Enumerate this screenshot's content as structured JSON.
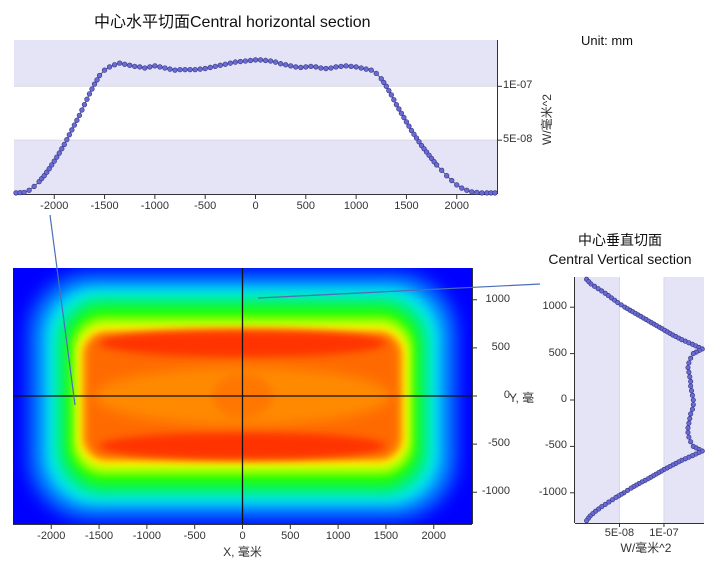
{
  "titles": {
    "horizontal_section": "中心水平切面Central horizontal section",
    "vertical_section_cn": "中心垂直切面",
    "vertical_section_en": "Central Vertical section",
    "unit": "Unit: mm"
  },
  "colors": {
    "band": "#e4e4f6",
    "marker_fill": "#6b6bd6",
    "marker_stroke": "#3a3a8a",
    "line": "#555555",
    "leader_line": "#4a6fb8",
    "axis": "#333333"
  },
  "chart_data": [
    {
      "id": "horizontal_profile",
      "type": "line",
      "title": "中心水平切面Central horizontal section",
      "xlabel": "",
      "ylabel": "W/毫米^2",
      "xlim": [
        -2400,
        2400
      ],
      "ylim": [
        0,
        1.43e-07
      ],
      "x_ticks": [
        -2000,
        -1500,
        -1000,
        -500,
        0,
        500,
        1000,
        1500,
        2000
      ],
      "x_tick_labels": [
        "-2000",
        "-1500",
        "-1000",
        "-500",
        "0",
        "500",
        "1000",
        "1500",
        "2000"
      ],
      "y_ticks": [
        5e-08,
        1e-07
      ],
      "y_tick_labels": [
        "5E-08",
        "1E-07"
      ],
      "y_axis_position": "right",
      "bands": [
        [
          0,
          5e-08
        ],
        [
          1e-07,
          1.43e-07
        ]
      ],
      "x": [
        -2380,
        -2300,
        -2250,
        -2200,
        -2150,
        -2100,
        -2050,
        -2000,
        -1950,
        -1900,
        -1850,
        -1800,
        -1750,
        -1700,
        -1650,
        -1600,
        -1550,
        -1500,
        -1450,
        -1400,
        -1350,
        -1300,
        -1250,
        -1200,
        -1150,
        -1100,
        -1050,
        -1000,
        -950,
        -900,
        -850,
        -800,
        -750,
        -700,
        -650,
        -600,
        -550,
        -500,
        -450,
        -400,
        -350,
        -300,
        -250,
        -200,
        -150,
        -100,
        -50,
        0,
        50,
        100,
        150,
        200,
        250,
        300,
        350,
        400,
        450,
        500,
        550,
        600,
        650,
        700,
        750,
        800,
        850,
        900,
        950,
        1000,
        1050,
        1100,
        1150,
        1200,
        1250,
        1300,
        1350,
        1400,
        1450,
        1500,
        1550,
        1600,
        1650,
        1700,
        1750,
        1800,
        1850,
        1900,
        1950,
        2000,
        2050,
        2100,
        2150,
        2200,
        2250,
        2300,
        2380
      ],
      "values": [
        1e-09,
        1.5e-09,
        3.5e-09,
        7e-09,
        1.15e-08,
        1.7e-08,
        2.35e-08,
        3.05e-08,
        3.8e-08,
        4.6e-08,
        5.5e-08,
        6.4e-08,
        7.3e-08,
        8.3e-08,
        9.3e-08,
        1.02e-07,
        1.1e-07,
        1.15e-07,
        1.18e-07,
        1.2e-07,
        1.215e-07,
        1.205e-07,
        1.195e-07,
        1.185e-07,
        1.18e-07,
        1.17e-07,
        1.18e-07,
        1.19e-07,
        1.18e-07,
        1.17e-07,
        1.16e-07,
        1.15e-07,
        1.155e-07,
        1.155e-07,
        1.155e-07,
        1.155e-07,
        1.16e-07,
        1.165e-07,
        1.175e-07,
        1.185e-07,
        1.195e-07,
        1.205e-07,
        1.215e-07,
        1.225e-07,
        1.23e-07,
        1.235e-07,
        1.24e-07,
        1.245e-07,
        1.245e-07,
        1.24e-07,
        1.235e-07,
        1.225e-07,
        1.21e-07,
        1.2e-07,
        1.19e-07,
        1.18e-07,
        1.175e-07,
        1.18e-07,
        1.185e-07,
        1.18e-07,
        1.17e-07,
        1.165e-07,
        1.17e-07,
        1.18e-07,
        1.185e-07,
        1.19e-07,
        1.185e-07,
        1.18e-07,
        1.17e-07,
        1.16e-07,
        1.15e-07,
        1.12e-07,
        1.07e-07,
        1e-07,
        9.2e-08,
        8.3e-08,
        7.5e-08,
        6.7e-08,
        5.9e-08,
        5.2e-08,
        4.5e-08,
        3.9e-08,
        3.3e-08,
        2.7e-08,
        2.2e-08,
        1.7e-08,
        1.25e-08,
        8.5e-09,
        5.5e-09,
        3.5e-09,
        2e-09,
        1.5e-09,
        1e-09,
        1e-09,
        1e-09
      ]
    },
    {
      "id": "irradiance_map",
      "type": "heatmap",
      "xlabel": "X, 毫米",
      "ylabel": "Y, 毫",
      "xlim": [
        -2400,
        2400
      ],
      "ylim": [
        -1330,
        1330
      ],
      "x_ticks": [
        -2000,
        -1500,
        -1000,
        -500,
        0,
        500,
        1000,
        1500,
        2000
      ],
      "x_tick_labels": [
        "-2000",
        "-1500",
        "-1000",
        "-500",
        "0",
        "500",
        "1000",
        "1500",
        "2000"
      ],
      "y_ticks": [
        -1000,
        -500,
        0,
        500,
        1000
      ],
      "y_tick_labels": [
        "-1000",
        "-500",
        "0",
        "500",
        "1000"
      ],
      "colormap": [
        "#0000ff",
        "#00c8ff",
        "#00ff80",
        "#00ff00",
        "#ffff00",
        "#ff8c00",
        "#ff2000"
      ],
      "crosshair": {
        "x": 0,
        "y": 0
      },
      "description": "Rounded-rectangle irradiance distribution; plateau ~|x|<1700, |y|<650; red ridges near y=±550"
    },
    {
      "id": "vertical_profile",
      "type": "line",
      "title": "中心垂直切面 Central Vertical section",
      "xlabel": "W/毫米^2",
      "ylabel": "",
      "xlim": [
        0,
        1.45e-07
      ],
      "ylim": [
        -1330,
        1330
      ],
      "x_ticks": [
        5e-08,
        1e-07
      ],
      "x_tick_labels": [
        "5E-08",
        "1E-07"
      ],
      "y_ticks": [
        -1000,
        -500,
        0,
        500,
        1000
      ],
      "y_tick_labels": [
        "-1000",
        "-500",
        "0",
        "500",
        "1000"
      ],
      "bands": [
        [
          0,
          5e-08
        ],
        [
          1e-07,
          1.45e-07
        ]
      ],
      "y": [
        1300,
        1250,
        1200,
        1150,
        1100,
        1050,
        1000,
        950,
        900,
        850,
        800,
        750,
        700,
        650,
        600,
        550,
        500,
        450,
        400,
        350,
        300,
        250,
        200,
        150,
        100,
        50,
        0,
        -50,
        -100,
        -150,
        -200,
        -250,
        -300,
        -350,
        -400,
        -450,
        -500,
        -550,
        -600,
        -650,
        -700,
        -750,
        -800,
        -850,
        -900,
        -950,
        -1000,
        -1050,
        -1100,
        -1150,
        -1200,
        -1250,
        -1300
      ],
      "values": [
        1.3e-08,
        1.8e-08,
        2.6e-08,
        3.4e-08,
        4.1e-08,
        4.8e-08,
        5.6e-08,
        6.5e-08,
        7.4e-08,
        8.3e-08,
        9.2e-08,
        1.01e-07,
        1.1e-07,
        1.2e-07,
        1.32e-07,
        1.43e-07,
        1.33e-07,
        1.3e-07,
        1.28e-07,
        1.27e-07,
        1.28e-07,
        1.29e-07,
        1.3e-07,
        1.3e-07,
        1.31e-07,
        1.32e-07,
        1.33e-07,
        1.33e-07,
        1.32e-07,
        1.3e-07,
        1.29e-07,
        1.28e-07,
        1.27e-07,
        1.27e-07,
        1.28e-07,
        1.3e-07,
        1.33e-07,
        1.43e-07,
        1.32e-07,
        1.2e-07,
        1.1e-07,
        1e-07,
        9.1e-08,
        8.2e-08,
        7.2e-08,
        6.3e-08,
        5.5e-08,
        4.6e-08,
        3.8e-08,
        3e-08,
        2.3e-08,
        1.7e-08,
        1.3e-08
      ]
    }
  ]
}
